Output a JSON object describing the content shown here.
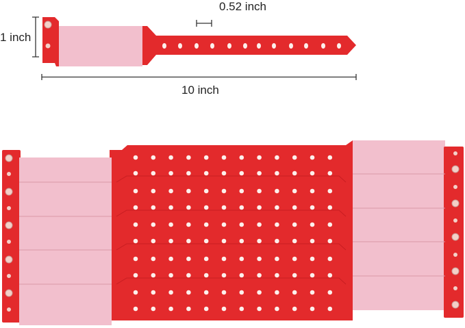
{
  "annotations": {
    "hole_spacing": "0.52 inch",
    "width": "1 inch",
    "length": "10 inch"
  },
  "colors": {
    "band_red": "#e32a2c",
    "band_dark": "#c81e22",
    "label_pink": "#f2bfcd",
    "hole": "#fdf0ec",
    "dimension_line": "#333333"
  }
}
